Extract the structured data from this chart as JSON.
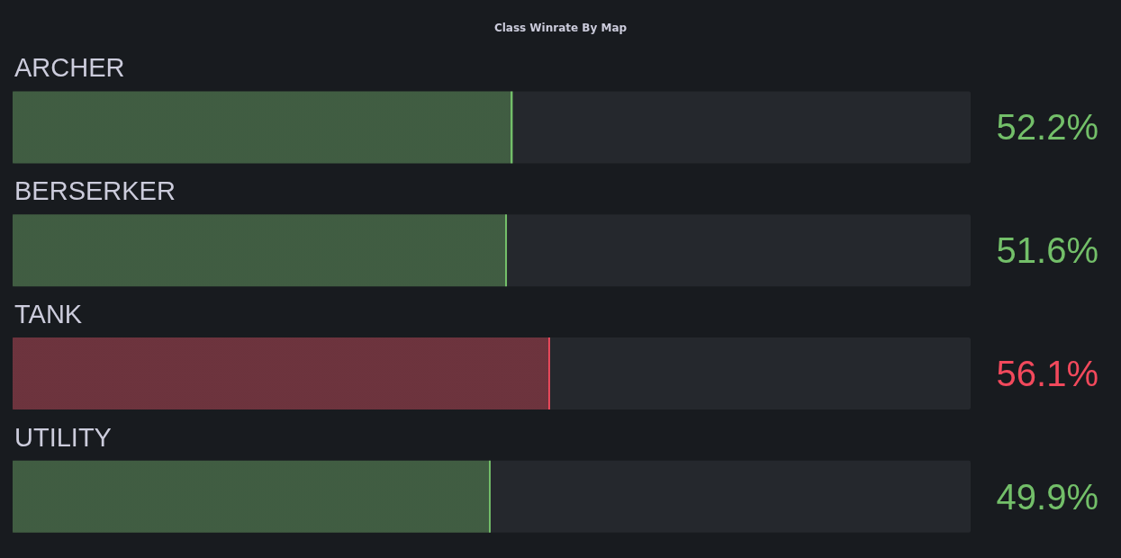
{
  "chart_data": {
    "type": "bar",
    "orientation": "horizontal",
    "title": "Class Winrate By Map",
    "categories": [
      "ARCHER",
      "BERSERKER",
      "TANK",
      "UTILITY"
    ],
    "values": [
      52.2,
      51.6,
      56.1,
      49.9
    ],
    "colors": [
      "#73bf69",
      "#73bf69",
      "#f2495c",
      "#73bf69"
    ],
    "value_labels": [
      "52.2%",
      "51.6%",
      "56.1%",
      "49.9%"
    ],
    "xlim": [
      0,
      100
    ]
  }
}
